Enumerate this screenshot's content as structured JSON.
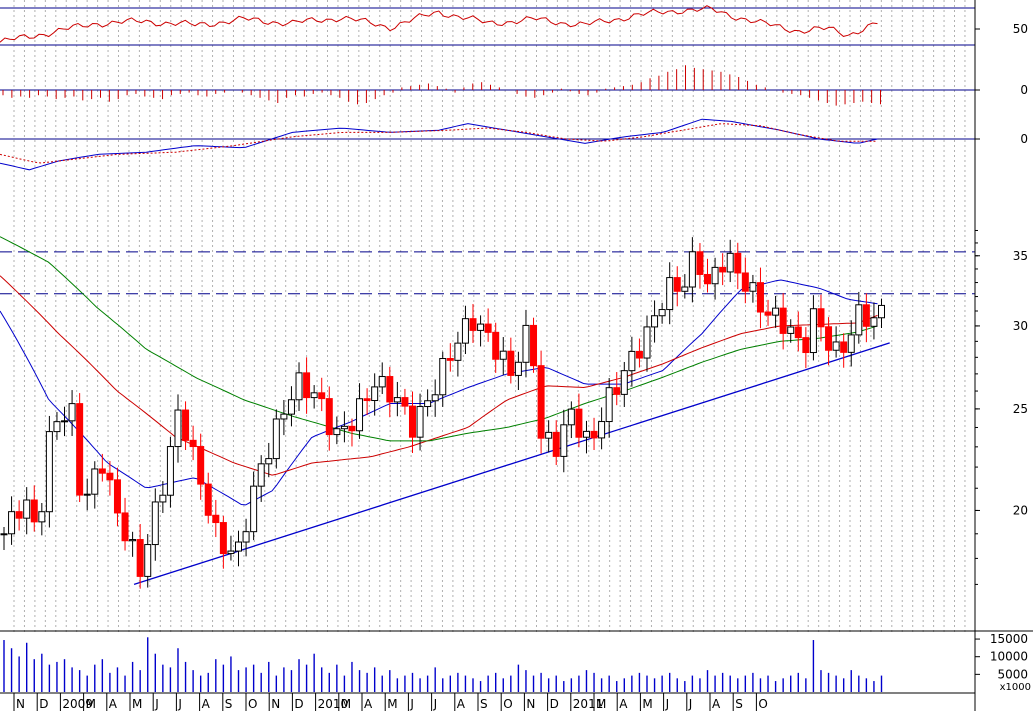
{
  "chart_data": {
    "type": "candlestick",
    "title": "",
    "grid": true,
    "x_tick_labels": [
      "N",
      "D",
      "2009",
      "M",
      "A",
      "M",
      "J",
      "J",
      "A",
      "S",
      "O",
      "N",
      "D",
      "2010",
      "M",
      "A",
      "M",
      "J",
      "J",
      "A",
      "S",
      "O",
      "N",
      "D",
      "2011",
      "M",
      "A",
      "M",
      "J",
      "J",
      "A",
      "S",
      "O"
    ],
    "price_panel": {
      "scale": "log",
      "ylim": [
        16,
        40
      ],
      "y_ticks": [
        20,
        25,
        30,
        35
      ],
      "resistance_levels": [
        35.3,
        32.2
      ],
      "support_trendline": {
        "from": [
          0.1375,
          17.0
        ],
        "to": [
          0.9125,
          28.9
        ]
      },
      "weeks": 117,
      "series": [
        {
          "name": "",
          "color": "#0000cc",
          "waypoints": [
            [
              0.0,
              31.0
            ],
            [
              0.05,
              25.5
            ],
            [
              0.11,
              22.2
            ],
            [
              0.15,
              21.0
            ],
            [
              0.2,
              21.5
            ],
            [
              0.25,
              20.2
            ],
            [
              0.28,
              20.9
            ],
            [
              0.32,
              23.5
            ],
            [
              0.36,
              24.3
            ],
            [
              0.4,
              25.3
            ],
            [
              0.44,
              25.3
            ],
            [
              0.48,
              26.2
            ],
            [
              0.52,
              27.0
            ],
            [
              0.56,
              27.4
            ],
            [
              0.6,
              26.4
            ],
            [
              0.64,
              26.4
            ],
            [
              0.68,
              27.2
            ],
            [
              0.72,
              29.5
            ],
            [
              0.76,
              32.5
            ],
            [
              0.8,
              33.2
            ],
            [
              0.84,
              32.6
            ],
            [
              0.87,
              31.8
            ],
            [
              0.9,
              31.5
            ]
          ]
        },
        {
          "name": "",
          "color": "#cc0000",
          "waypoints": [
            [
              0.0,
              33.5
            ],
            [
              0.06,
              29.5
            ],
            [
              0.12,
              26.0
            ],
            [
              0.18,
              23.5
            ],
            [
              0.24,
              22.2
            ],
            [
              0.28,
              21.6
            ],
            [
              0.32,
              22.2
            ],
            [
              0.38,
              22.5
            ],
            [
              0.42,
              23.0
            ],
            [
              0.48,
              24.0
            ],
            [
              0.52,
              25.5
            ],
            [
              0.56,
              26.3
            ],
            [
              0.6,
              26.2
            ],
            [
              0.64,
              26.8
            ],
            [
              0.68,
              27.6
            ],
            [
              0.72,
              28.6
            ],
            [
              0.76,
              29.5
            ],
            [
              0.8,
              30.0
            ],
            [
              0.84,
              30.1
            ],
            [
              0.88,
              30.2
            ],
            [
              0.9,
              30.7
            ]
          ]
        },
        {
          "name": "",
          "color": "#008000",
          "waypoints": [
            [
              0.0,
              36.5
            ],
            [
              0.05,
              34.5
            ],
            [
              0.1,
              31.2
            ],
            [
              0.15,
              28.5
            ],
            [
              0.2,
              26.8
            ],
            [
              0.25,
              25.5
            ],
            [
              0.3,
              24.6
            ],
            [
              0.36,
              23.7
            ],
            [
              0.4,
              23.3
            ],
            [
              0.44,
              23.3
            ],
            [
              0.48,
              23.7
            ],
            [
              0.52,
              24.0
            ],
            [
              0.56,
              24.5
            ],
            [
              0.6,
              25.3
            ],
            [
              0.64,
              26.0
            ],
            [
              0.68,
              26.8
            ],
            [
              0.72,
              27.7
            ],
            [
              0.76,
              28.5
            ],
            [
              0.8,
              29.0
            ],
            [
              0.84,
              29.2
            ],
            [
              0.88,
              29.6
            ],
            [
              0.9,
              30.0
            ]
          ]
        }
      ],
      "close_path": [
        [
          0.0,
          19.0
        ],
        [
          0.02,
          20.5
        ],
        [
          0.035,
          19.0
        ],
        [
          0.05,
          24.5
        ],
        [
          0.07,
          24.7
        ],
        [
          0.08,
          20.0
        ],
        [
          0.1,
          22.4
        ],
        [
          0.115,
          20.0
        ],
        [
          0.14,
          17.5
        ],
        [
          0.165,
          21.5
        ],
        [
          0.18,
          25.0
        ],
        [
          0.2,
          21.5
        ],
        [
          0.22,
          18.6
        ],
        [
          0.24,
          18.2
        ],
        [
          0.26,
          21.5
        ],
        [
          0.28,
          24.0
        ],
        [
          0.3,
          26.5
        ],
        [
          0.32,
          25.8
        ],
        [
          0.34,
          23.5
        ],
        [
          0.36,
          24.5
        ],
        [
          0.38,
          26.5
        ],
        [
          0.4,
          25.8
        ],
        [
          0.42,
          24.0
        ],
        [
          0.44,
          26.0
        ],
        [
          0.46,
          28.5
        ],
        [
          0.48,
          30.5
        ],
        [
          0.5,
          29.0
        ],
        [
          0.52,
          27.0
        ],
        [
          0.54,
          30.0
        ],
        [
          0.55,
          23.5
        ],
        [
          0.57,
          23.0
        ],
        [
          0.58,
          25.0
        ],
        [
          0.6,
          23.0
        ],
        [
          0.62,
          25.5
        ],
        [
          0.64,
          27.5
        ],
        [
          0.66,
          29.5
        ],
        [
          0.68,
          32.5
        ],
        [
          0.7,
          33.0
        ],
        [
          0.71,
          35.5
        ],
        [
          0.72,
          32.5
        ],
        [
          0.74,
          35.0
        ],
        [
          0.76,
          33.0
        ],
        [
          0.78,
          31.0
        ],
        [
          0.8,
          30.2
        ],
        [
          0.82,
          28.5
        ],
        [
          0.83,
          30.5
        ],
        [
          0.84,
          30.0
        ],
        [
          0.85,
          28.0
        ],
        [
          0.87,
          29.5
        ],
        [
          0.88,
          31.5
        ],
        [
          0.89,
          29.8
        ],
        [
          0.9,
          31.2
        ]
      ]
    },
    "volume_panel": {
      "unit_label": "x1000",
      "y_ticks": [
        5000,
        10000,
        15000
      ],
      "ylim": [
        0,
        17000
      ],
      "bar_levels": [
        0.95,
        0.8,
        0.65,
        0.9,
        0.6,
        0.7,
        0.5,
        0.55,
        0.6,
        0.45,
        0.4,
        0.3,
        0.5,
        0.6,
        0.35,
        0.45,
        0.3,
        0.55,
        0.4,
        1.0,
        0.7,
        0.5,
        0.45,
        0.8,
        0.55,
        0.4,
        0.3,
        0.35,
        0.6,
        0.5,
        0.65,
        0.4,
        0.45,
        0.5,
        0.35,
        0.55,
        0.3,
        0.45,
        0.4,
        0.6,
        0.5,
        0.7,
        0.45,
        0.35,
        0.5,
        0.3,
        0.55,
        0.4,
        0.35,
        0.45,
        0.3,
        0.4,
        0.25,
        0.3,
        0.35,
        0.25,
        0.3,
        0.45,
        0.25,
        0.3,
        0.35,
        0.3,
        0.25,
        0.2,
        0.3,
        0.35,
        0.25,
        0.3,
        0.5,
        0.4,
        0.3,
        0.35,
        0.25,
        0.3,
        0.2,
        0.25,
        0.3,
        0.4,
        0.35,
        0.25,
        0.3,
        0.2,
        0.25,
        0.3,
        0.35,
        0.3,
        0.25,
        0.3,
        0.35,
        0.25,
        0.2,
        0.3,
        0.25,
        0.4,
        0.3,
        0.35,
        0.3,
        0.25,
        0.3,
        0.35,
        0.25,
        0.3,
        0.2,
        0.25,
        0.3,
        0.35,
        0.25,
        0.95,
        0.4,
        0.35,
        0.3,
        0.25,
        0.4,
        0.3,
        0.25,
        0.2,
        0.3
      ]
    },
    "indicator_panels": [
      {
        "id": "rsi",
        "tick_label": "50",
        "bands": [
          0.07,
          0.85
        ],
        "line_color": "#cc0000",
        "waypoints": [
          [
            0.0,
            0.1
          ],
          [
            0.05,
            0.35
          ],
          [
            0.1,
            0.6
          ],
          [
            0.15,
            0.65
          ],
          [
            0.2,
            0.55
          ],
          [
            0.25,
            0.7
          ],
          [
            0.3,
            0.6
          ],
          [
            0.35,
            0.75
          ],
          [
            0.4,
            0.5
          ],
          [
            0.45,
            0.9
          ],
          [
            0.5,
            0.6
          ],
          [
            0.55,
            0.7
          ],
          [
            0.6,
            0.55
          ],
          [
            0.65,
            0.8
          ],
          [
            0.7,
            0.95
          ],
          [
            0.73,
            0.95
          ],
          [
            0.78,
            0.6
          ],
          [
            0.82,
            0.4
          ],
          [
            0.85,
            0.45
          ],
          [
            0.87,
            0.3
          ],
          [
            0.9,
            0.6
          ]
        ]
      },
      {
        "id": "momentum",
        "tick_label": "0",
        "color": "#cc0000",
        "bar_levels": [
          -0.2,
          -0.3,
          -0.25,
          -0.3,
          -0.2,
          -0.25,
          -0.35,
          -0.3,
          -0.25,
          -0.4,
          -0.35,
          -0.3,
          -0.45,
          -0.35,
          -0.2,
          -0.15,
          -0.25,
          -0.3,
          -0.35,
          -0.2,
          -0.15,
          -0.1,
          -0.2,
          -0.25,
          -0.15,
          -0.1,
          0.0,
          -0.1,
          -0.2,
          -0.3,
          -0.4,
          -0.5,
          -0.3,
          -0.2,
          -0.25,
          -0.15,
          -0.1,
          -0.2,
          -0.3,
          -0.45,
          -0.55,
          -0.5,
          -0.35,
          -0.2,
          -0.1,
          0.1,
          0.15,
          0.2,
          0.25,
          0.15,
          0.05,
          -0.1,
          0.1,
          0.25,
          0.3,
          0.2,
          0.1,
          0.0,
          -0.15,
          -0.25,
          -0.3,
          -0.2,
          -0.1,
          0.05,
          -0.05,
          -0.15,
          -0.2,
          -0.1,
          0.05,
          0.1,
          0.15,
          0.2,
          0.3,
          0.45,
          0.55,
          0.7,
          0.8,
          0.95,
          0.85,
          0.8,
          0.75,
          0.7,
          0.6,
          0.5,
          0.35,
          0.2,
          0.1,
          0.0,
          -0.1,
          -0.15,
          -0.2,
          -0.3,
          -0.4,
          -0.5,
          -0.6,
          -0.55,
          -0.5,
          -0.45,
          -0.5,
          -0.55
        ],
        "range": [
          -1,
          1
        ]
      },
      {
        "id": "macd",
        "tick_label": "0",
        "lines": [
          {
            "color": "#0000cc",
            "waypoints": [
              [
                0.0,
                -0.55
              ],
              [
                0.03,
                -0.7
              ],
              [
                0.06,
                -0.5
              ],
              [
                0.1,
                -0.35
              ],
              [
                0.15,
                -0.3
              ],
              [
                0.2,
                -0.15
              ],
              [
                0.25,
                -0.2
              ],
              [
                0.3,
                0.15
              ],
              [
                0.35,
                0.25
              ],
              [
                0.4,
                0.15
              ],
              [
                0.45,
                0.2
              ],
              [
                0.48,
                0.35
              ],
              [
                0.52,
                0.2
              ],
              [
                0.56,
                0.05
              ],
              [
                0.6,
                -0.1
              ],
              [
                0.64,
                0.05
              ],
              [
                0.68,
                0.15
              ],
              [
                0.72,
                0.45
              ],
              [
                0.75,
                0.4
              ],
              [
                0.8,
                0.2
              ],
              [
                0.84,
                0.0
              ],
              [
                0.88,
                -0.1
              ],
              [
                0.9,
                0.0
              ]
            ]
          },
          {
            "color": "#cc0000",
            "dashed": true,
            "waypoints": [
              [
                0.0,
                -0.35
              ],
              [
                0.04,
                -0.55
              ],
              [
                0.08,
                -0.45
              ],
              [
                0.12,
                -0.35
              ],
              [
                0.18,
                -0.3
              ],
              [
                0.24,
                -0.15
              ],
              [
                0.3,
                0.05
              ],
              [
                0.35,
                0.15
              ],
              [
                0.4,
                0.15
              ],
              [
                0.46,
                0.2
              ],
              [
                0.5,
                0.25
              ],
              [
                0.54,
                0.15
              ],
              [
                0.58,
                0.0
              ],
              [
                0.62,
                -0.05
              ],
              [
                0.66,
                0.05
              ],
              [
                0.7,
                0.2
              ],
              [
                0.74,
                0.35
              ],
              [
                0.78,
                0.3
              ],
              [
                0.82,
                0.1
              ],
              [
                0.86,
                -0.05
              ],
              [
                0.9,
                -0.05
              ]
            ]
          }
        ]
      }
    ]
  }
}
